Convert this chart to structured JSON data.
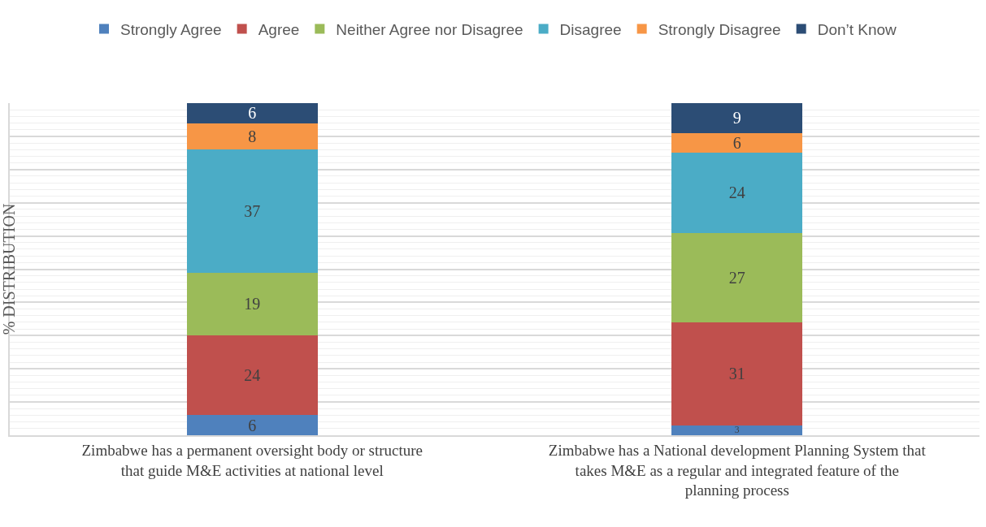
{
  "chart_data": {
    "type": "bar",
    "stacked": true,
    "ylabel": "% DISTRIBUTION",
    "categories": [
      "Zimbabwe has a permanent oversight body or structure that guide M&E activities at national level",
      "Zimbabwe has a National development Planning System that takes M&E as a regular and integrated feature of the planning process"
    ],
    "series": [
      {
        "name": "Strongly Agree",
        "color": "#4f81bd",
        "values": [
          6,
          3
        ]
      },
      {
        "name": "Agree",
        "color": "#c0504d",
        "values": [
          24,
          31
        ]
      },
      {
        "name": "Neither Agree nor Disagree",
        "color": "#9bbb59",
        "values": [
          19,
          27
        ]
      },
      {
        "name": "Disagree",
        "color": "#4bacc6",
        "values": [
          37,
          24
        ]
      },
      {
        "name": "Strongly Disagree",
        "color": "#f79646",
        "values": [
          8,
          6
        ]
      },
      {
        "name": "Don’t Know",
        "color": "#2c4d75",
        "values": [
          6,
          9
        ]
      }
    ],
    "ylim": [
      0,
      100
    ],
    "tick_labels": "x",
    "grid": "y",
    "legend": "top",
    "data_labels": true
  }
}
